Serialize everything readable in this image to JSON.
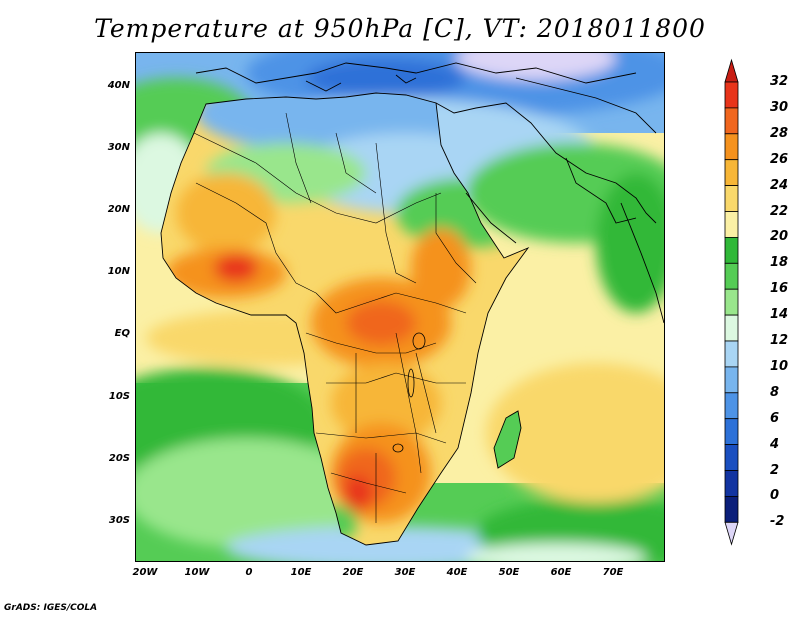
{
  "title": "Temperature at 950hPa [C], VT: 2018011800",
  "credit": "GrADS: IGES/COLA",
  "map": {
    "lon_range": [
      -22,
      80
    ],
    "lat_range": [
      -37,
      45
    ],
    "lat_ticks": [
      {
        "value": 40,
        "label": "40N"
      },
      {
        "value": 30,
        "label": "30N"
      },
      {
        "value": 20,
        "label": "20N"
      },
      {
        "value": 10,
        "label": "10N"
      },
      {
        "value": 0,
        "label": "EQ"
      },
      {
        "value": -10,
        "label": "10S"
      },
      {
        "value": -20,
        "label": "20S"
      },
      {
        "value": -30,
        "label": "30S"
      }
    ],
    "lon_ticks": [
      {
        "value": -20,
        "label": "20W"
      },
      {
        "value": -10,
        "label": "10W"
      },
      {
        "value": 0,
        "label": "0"
      },
      {
        "value": 10,
        "label": "10E"
      },
      {
        "value": 20,
        "label": "20E"
      },
      {
        "value": 30,
        "label": "30E"
      },
      {
        "value": 40,
        "label": "40E"
      },
      {
        "value": 50,
        "label": "50E"
      },
      {
        "value": 60,
        "label": "60E"
      },
      {
        "value": 70,
        "label": "70E"
      }
    ]
  },
  "colorbar": {
    "labels": [
      "32",
      "30",
      "28",
      "26",
      "24",
      "22",
      "20",
      "18",
      "16",
      "14",
      "12",
      "10",
      "8",
      "6",
      "4",
      "2",
      "0",
      "-2"
    ],
    "colors": [
      "#e8341a",
      "#f0661e",
      "#f5921e",
      "#f7b637",
      "#f9d86b",
      "#fbf0a5",
      "#30b838",
      "#55cc55",
      "#99e68c",
      "#dcf8e1",
      "#a9d5f4",
      "#78b5ee",
      "#4d93e6",
      "#2d71d8",
      "#1a4fc0",
      "#1234a1",
      "#0b1f7a"
    ],
    "top_arrow_color": "#c81e14",
    "bottom_arrow_color": "#ddd6f7"
  }
}
